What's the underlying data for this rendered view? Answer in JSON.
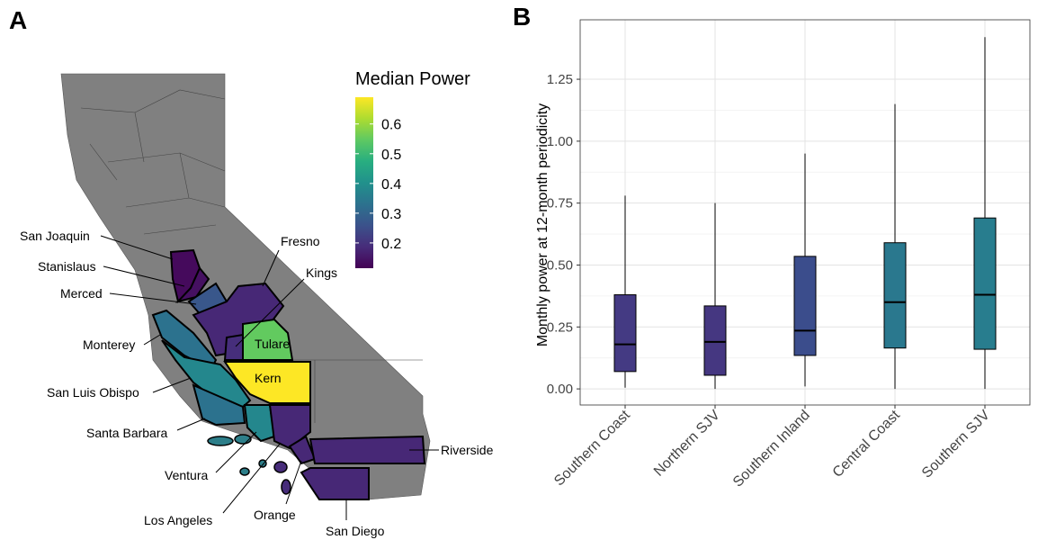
{
  "chart_data": [
    {
      "type": "choropleth",
      "panel": "A",
      "legend_title": "Median Power",
      "clim": [
        0.115,
        0.69
      ],
      "cticks": [
        0.2,
        0.3,
        0.4,
        0.5,
        0.6
      ],
      "regions": [
        "San Joaquin",
        "Stanislaus",
        "Merced",
        "Fresno",
        "Kings",
        "Tulare",
        "Kern",
        "Monterey",
        "San Luis Obispo",
        "Santa Barbara",
        "Ventura",
        "Los Angeles",
        "Orange",
        "San Diego",
        "Riverside"
      ],
      "values": [
        0.13,
        0.14,
        0.27,
        0.18,
        0.19,
        0.55,
        0.69,
        0.33,
        0.38,
        0.33,
        0.38,
        0.18,
        0.18,
        0.18,
        0.18
      ]
    },
    {
      "type": "box",
      "panel": "B",
      "ylabel": "Monthly power at 12-month periodicity",
      "categories": [
        "Southern Coast",
        "Northern SJV",
        "Southern Inland",
        "Central Coast",
        "Southern SJV"
      ],
      "colors": [
        "#443a83",
        "#453781",
        "#3b4d8c",
        "#2a788e",
        "#287d8e"
      ],
      "whisker_low": [
        0.005,
        0.0,
        0.01,
        0.0,
        0.0
      ],
      "q1": [
        0.07,
        0.055,
        0.135,
        0.165,
        0.16
      ],
      "median": [
        0.18,
        0.19,
        0.235,
        0.35,
        0.38
      ],
      "q3": [
        0.38,
        0.335,
        0.535,
        0.59,
        0.69
      ],
      "whisker_high": [
        0.78,
        0.75,
        0.95,
        1.15,
        1.42
      ],
      "ylim": [
        -0.065,
        1.49
      ],
      "yticks": [
        {
          "value": 0,
          "label": "0.00"
        },
        {
          "value": 0.25,
          "label": "0.25"
        },
        {
          "value": 0.5,
          "label": "0.50"
        },
        {
          "value": 0.75,
          "label": "0.75"
        },
        {
          "value": 1,
          "label": "1.00"
        },
        {
          "value": 1.25,
          "label": "1.25"
        }
      ],
      "grid": true
    }
  ]
}
